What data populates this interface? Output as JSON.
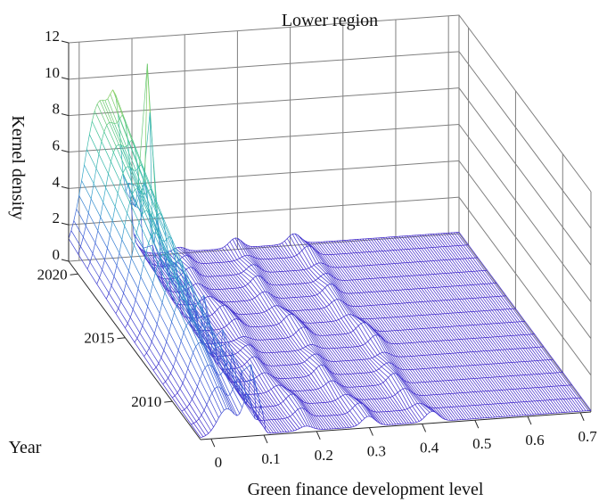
{
  "chart_data": {
    "type": "surface",
    "title": "Lower region",
    "xlabel": "Green finance development level",
    "ylabel": "Year",
    "zlabel": "Kernel density",
    "x_ticks": [
      "0",
      "0.1",
      "0.2",
      "0.3",
      "0.4",
      "0.5",
      "0.6",
      "0.7"
    ],
    "y_ticks": [
      "2010",
      "2015",
      "2020"
    ],
    "z_ticks": [
      "0",
      "2",
      "4",
      "6",
      "8",
      "10",
      "12"
    ],
    "xlim": [
      -0.02,
      0.72
    ],
    "ylim": [
      2007,
      2021
    ],
    "zlim": [
      0,
      12
    ],
    "years": [
      2007,
      2008,
      2009,
      2010,
      2011,
      2012,
      2013,
      2014,
      2015,
      2016,
      2017,
      2018,
      2019,
      2020,
      2021
    ],
    "peaks": {
      "main_left_peak_x": 0.03,
      "max_density_left": 8.6,
      "spike_x": 0.095,
      "spike_density": 12.0,
      "small_peaks_x": [
        0.18,
        0.29,
        0.41
      ]
    },
    "colormap": [
      "#3d22c9",
      "#3a63d8",
      "#2fa5c8",
      "#3bc29c",
      "#9cd24b",
      "#f2e41c"
    ]
  }
}
